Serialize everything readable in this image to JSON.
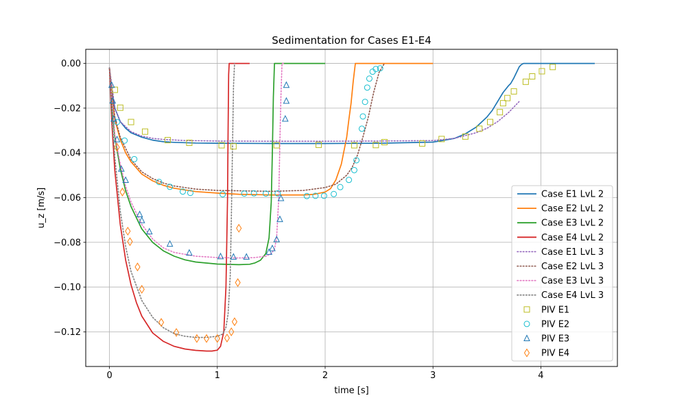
{
  "chart_data": {
    "type": "line",
    "title": "Sedimentation for Cases E1-E4",
    "xlabel": "time [s]",
    "ylabel": "u_z [m/s]",
    "xlim": [
      -0.22,
      4.71
    ],
    "ylim": [
      -0.1355,
      0.0063
    ],
    "x_ticks": [
      0,
      1,
      2,
      3,
      4
    ],
    "x_tick_labels": [
      "0",
      "1",
      "2",
      "3",
      "4"
    ],
    "y_ticks": [
      0.0,
      -0.02,
      -0.04,
      -0.06,
      -0.08,
      -0.1,
      -0.12
    ],
    "y_tick_labels": [
      "0.00",
      "−0.02",
      "−0.04",
      "−0.06",
      "−0.08",
      "−0.10",
      "−0.12"
    ],
    "grid": true,
    "legend_position": "lower-right",
    "series": [
      {
        "name": "Case E1 LvL 2",
        "kind": "line",
        "style": "solid",
        "color": "#1f77b4",
        "x": [
          0,
          0.02,
          0.05,
          0.1,
          0.15,
          0.2,
          0.3,
          0.4,
          0.5,
          0.6,
          0.8,
          1.0,
          1.5,
          2.0,
          2.5,
          3.0,
          3.2,
          3.3,
          3.4,
          3.5,
          3.55,
          3.6,
          3.65,
          3.7,
          3.72,
          3.75,
          3.78,
          3.8,
          3.82,
          3.84,
          3.86,
          3.9,
          4.0,
          4.5
        ],
        "y": [
          -0.002,
          -0.012,
          -0.02,
          -0.026,
          -0.029,
          -0.031,
          -0.033,
          -0.0343,
          -0.035,
          -0.0353,
          -0.0356,
          -0.0357,
          -0.0358,
          -0.0358,
          -0.0357,
          -0.0352,
          -0.0335,
          -0.0315,
          -0.0285,
          -0.024,
          -0.021,
          -0.017,
          -0.013,
          -0.01,
          -0.009,
          -0.0065,
          -0.0035,
          -0.0015,
          -0.0005,
          0,
          0,
          0,
          0,
          0
        ]
      },
      {
        "name": "Case E2 LvL 2",
        "kind": "line",
        "style": "solid",
        "color": "#ff7f0e",
        "x": [
          0,
          0.02,
          0.05,
          0.1,
          0.15,
          0.2,
          0.3,
          0.4,
          0.5,
          0.6,
          0.8,
          1.0,
          1.2,
          1.5,
          1.8,
          1.9,
          2.0,
          2.05,
          2.1,
          2.15,
          2.2,
          2.22,
          2.24,
          2.26,
          2.28,
          3.0
        ],
        "y": [
          -0.002,
          -0.014,
          -0.025,
          -0.034,
          -0.04,
          -0.044,
          -0.0495,
          -0.0525,
          -0.0545,
          -0.0558,
          -0.0573,
          -0.058,
          -0.0585,
          -0.0588,
          -0.0588,
          -0.0585,
          -0.0575,
          -0.056,
          -0.052,
          -0.045,
          -0.033,
          -0.025,
          -0.018,
          -0.008,
          0,
          0
        ]
      },
      {
        "name": "Case E3 LvL 2",
        "kind": "line",
        "style": "solid",
        "color": "#2ca02c",
        "x": [
          0,
          0.02,
          0.05,
          0.1,
          0.15,
          0.2,
          0.3,
          0.4,
          0.5,
          0.6,
          0.7,
          0.8,
          1.0,
          1.2,
          1.3,
          1.35,
          1.4,
          1.45,
          1.48,
          1.5,
          1.51,
          1.52,
          1.53,
          1.7,
          2.0
        ],
        "y": [
          -0.002,
          -0.018,
          -0.033,
          -0.047,
          -0.057,
          -0.064,
          -0.074,
          -0.08,
          -0.0838,
          -0.0862,
          -0.0878,
          -0.0888,
          -0.0897,
          -0.09,
          -0.0898,
          -0.0892,
          -0.088,
          -0.085,
          -0.078,
          -0.062,
          -0.04,
          -0.015,
          0,
          0,
          0
        ]
      },
      {
        "name": "Case E4 LvL 2",
        "kind": "line",
        "style": "solid",
        "color": "#d62728",
        "x": [
          0,
          0.02,
          0.05,
          0.1,
          0.15,
          0.2,
          0.25,
          0.3,
          0.4,
          0.5,
          0.6,
          0.7,
          0.8,
          0.9,
          0.95,
          1.0,
          1.03,
          1.06,
          1.08,
          1.095,
          1.1,
          1.105,
          1.11,
          1.2,
          1.3
        ],
        "y": [
          -0.002,
          -0.025,
          -0.048,
          -0.072,
          -0.088,
          -0.099,
          -0.107,
          -0.113,
          -0.1205,
          -0.1243,
          -0.1265,
          -0.1277,
          -0.1283,
          -0.1286,
          -0.1286,
          -0.1282,
          -0.1265,
          -0.12,
          -0.1,
          -0.06,
          -0.03,
          -0.005,
          0,
          0,
          0
        ]
      },
      {
        "name": "Case E1 LvL 3",
        "kind": "line",
        "style": "dotted",
        "color": "#9467bd",
        "x": [
          0,
          0.05,
          0.1,
          0.2,
          0.3,
          0.4,
          0.5,
          0.7,
          1.0,
          1.5,
          2.0,
          2.5,
          3.0,
          3.2,
          3.4,
          3.5,
          3.6,
          3.7,
          3.8
        ],
        "y": [
          -0.002,
          -0.02,
          -0.026,
          -0.0305,
          -0.0325,
          -0.0335,
          -0.034,
          -0.0345,
          -0.0347,
          -0.0348,
          -0.0348,
          -0.0347,
          -0.0345,
          -0.0335,
          -0.031,
          -0.029,
          -0.026,
          -0.022,
          -0.017
        ]
      },
      {
        "name": "Case E2 LvL 3",
        "kind": "line",
        "style": "dotted",
        "color": "#8c564b",
        "x": [
          0,
          0.05,
          0.1,
          0.2,
          0.3,
          0.4,
          0.5,
          0.6,
          0.8,
          1.0,
          1.5,
          1.8,
          2.0,
          2.1,
          2.2,
          2.25,
          2.3,
          2.35,
          2.4,
          2.45,
          2.5,
          2.55
        ],
        "y": [
          -0.002,
          -0.024,
          -0.033,
          -0.043,
          -0.0485,
          -0.0515,
          -0.0535,
          -0.0548,
          -0.0562,
          -0.0568,
          -0.0572,
          -0.0568,
          -0.0555,
          -0.054,
          -0.05,
          -0.0465,
          -0.041,
          -0.033,
          -0.024,
          -0.013,
          -0.004,
          0
        ]
      },
      {
        "name": "Case E3 LvL 3",
        "kind": "line",
        "style": "dotted",
        "color": "#e377c2",
        "x": [
          0,
          0.05,
          0.1,
          0.15,
          0.2,
          0.3,
          0.4,
          0.5,
          0.6,
          0.8,
          1.0,
          1.2,
          1.35,
          1.45,
          1.5,
          1.53,
          1.55,
          1.57,
          1.58,
          1.59,
          1.6,
          1.63
        ],
        "y": [
          -0.002,
          -0.032,
          -0.045,
          -0.055,
          -0.062,
          -0.072,
          -0.0785,
          -0.0825,
          -0.0845,
          -0.0862,
          -0.0868,
          -0.087,
          -0.0868,
          -0.0862,
          -0.085,
          -0.083,
          -0.078,
          -0.06,
          -0.035,
          -0.015,
          0,
          0
        ]
      },
      {
        "name": "Case E4 LvL 3",
        "kind": "line",
        "style": "dotted",
        "color": "#7f7f7f",
        "x": [
          0,
          0.02,
          0.05,
          0.1,
          0.15,
          0.2,
          0.3,
          0.4,
          0.5,
          0.6,
          0.7,
          0.8,
          0.9,
          1.0,
          1.05,
          1.08,
          1.1,
          1.12,
          1.13,
          1.14,
          1.15,
          1.16
        ],
        "y": [
          -0.002,
          -0.022,
          -0.042,
          -0.066,
          -0.082,
          -0.093,
          -0.106,
          -0.1135,
          -0.1182,
          -0.1208,
          -0.122,
          -0.1225,
          -0.1225,
          -0.122,
          -0.121,
          -0.118,
          -0.112,
          -0.095,
          -0.07,
          -0.04,
          -0.01,
          0
        ]
      },
      {
        "name": "PIV E1",
        "kind": "marker",
        "marker": "square",
        "color": "#bcbd22",
        "x": [
          0.05,
          0.1,
          0.2,
          0.33,
          0.54,
          0.74,
          1.04,
          1.15,
          1.55,
          1.94,
          2.27,
          2.47,
          2.55,
          2.9,
          3.08,
          3.3,
          3.43,
          3.53,
          3.62,
          3.65,
          3.69,
          3.75,
          3.86,
          3.92,
          4.01,
          4.11
        ],
        "y": [
          -0.0118,
          -0.0198,
          -0.0262,
          -0.0305,
          -0.0343,
          -0.0355,
          -0.0366,
          -0.0371,
          -0.0366,
          -0.0364,
          -0.0366,
          -0.0365,
          -0.0352,
          -0.0358,
          -0.0338,
          -0.0327,
          -0.0292,
          -0.0262,
          -0.0218,
          -0.0178,
          -0.0155,
          -0.0125,
          -0.0082,
          -0.0058,
          -0.0035,
          -0.0016
        ]
      },
      {
        "name": "PIV E2",
        "kind": "marker",
        "marker": "circle",
        "color": "#17becf",
        "x": [
          0.07,
          0.14,
          0.23,
          0.46,
          0.56,
          0.68,
          0.75,
          1.05,
          1.25,
          1.34,
          1.45,
          1.56,
          1.83,
          1.91,
          1.99,
          2.08,
          2.14,
          2.22,
          2.27,
          2.29,
          2.34,
          2.35,
          2.37,
          2.39,
          2.41,
          2.44,
          2.47,
          2.51
        ],
        "y": [
          -0.0262,
          -0.0345,
          -0.0428,
          -0.053,
          -0.0552,
          -0.0573,
          -0.0579,
          -0.0585,
          -0.0582,
          -0.0581,
          -0.0582,
          -0.0581,
          -0.0593,
          -0.0592,
          -0.0592,
          -0.0584,
          -0.0553,
          -0.0521,
          -0.0477,
          -0.0433,
          -0.0292,
          -0.0237,
          -0.0172,
          -0.0108,
          -0.0068,
          -0.0037,
          -0.0025,
          -0.0022
        ]
      },
      {
        "name": "PIV E3",
        "kind": "marker",
        "marker": "triangle",
        "color": "#1f77b4",
        "x": [
          0.02,
          0.03,
          0.04,
          0.07,
          0.11,
          0.15,
          0.28,
          0.3,
          0.37,
          0.56,
          0.74,
          1.03,
          1.15,
          1.27,
          1.48,
          1.51,
          1.55,
          1.58,
          1.59,
          1.63,
          1.64,
          1.64
        ],
        "y": [
          -0.0097,
          -0.0167,
          -0.0248,
          -0.034,
          -0.0472,
          -0.0522,
          -0.0675,
          -0.0702,
          -0.0752,
          -0.0807,
          -0.0847,
          -0.0863,
          -0.0865,
          -0.0865,
          -0.0843,
          -0.0827,
          -0.0787,
          -0.0697,
          -0.0603,
          -0.0248,
          -0.0168,
          -0.0097
        ]
      },
      {
        "name": "PIV E4",
        "kind": "marker",
        "marker": "diamond",
        "color": "#ff7f0e",
        "x": [
          0.07,
          0.12,
          0.17,
          0.19,
          0.26,
          0.3,
          0.48,
          0.62,
          0.81,
          0.9,
          1.0,
          1.09,
          1.13,
          1.16,
          1.19,
          1.2
        ],
        "y": [
          -0.0375,
          -0.0575,
          -0.075,
          -0.0797,
          -0.091,
          -0.101,
          -0.1158,
          -0.1203,
          -0.123,
          -0.123,
          -0.123,
          -0.1228,
          -0.12,
          -0.1155,
          -0.098,
          -0.0737
        ]
      }
    ]
  }
}
